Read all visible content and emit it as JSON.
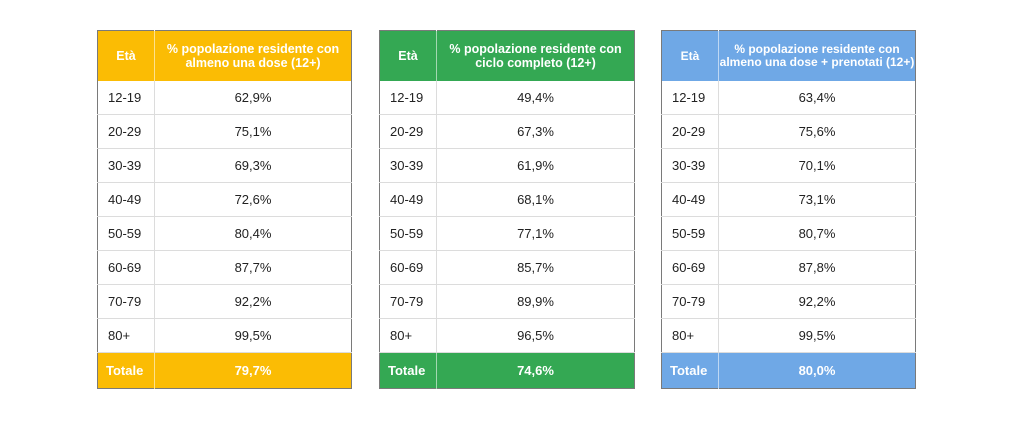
{
  "tables": [
    {
      "header_age": "Età",
      "header_value": "% popolazione residente con almeno una dose (12+)",
      "color": "#fbbc04",
      "rows": [
        {
          "age": "12-19",
          "value": "62,9%"
        },
        {
          "age": "20-29",
          "value": "75,1%"
        },
        {
          "age": "30-39",
          "value": "69,3%"
        },
        {
          "age": "40-49",
          "value": "72,6%"
        },
        {
          "age": "50-59",
          "value": "80,4%"
        },
        {
          "age": "60-69",
          "value": "87,7%"
        },
        {
          "age": "70-79",
          "value": "92,2%"
        },
        {
          "age": "80+",
          "value": "99,5%"
        }
      ],
      "total_label": "Totale",
      "total_value": "79,7%"
    },
    {
      "header_age": "Età",
      "header_value": "% popolazione residente con ciclo completo (12+)",
      "color": "#34a853",
      "rows": [
        {
          "age": "12-19",
          "value": "49,4%"
        },
        {
          "age": "20-29",
          "value": "67,3%"
        },
        {
          "age": "30-39",
          "value": "61,9%"
        },
        {
          "age": "40-49",
          "value": "68,1%"
        },
        {
          "age": "50-59",
          "value": "77,1%"
        },
        {
          "age": "60-69",
          "value": "85,7%"
        },
        {
          "age": "70-79",
          "value": "89,9%"
        },
        {
          "age": "80+",
          "value": "96,5%"
        }
      ],
      "total_label": "Totale",
      "total_value": "74,6%"
    },
    {
      "header_age": "Età",
      "header_value": "% popolazione residente con almeno una dose + prenotati (12+)",
      "color": "#6fa8e6",
      "rows": [
        {
          "age": "12-19",
          "value": "63,4%"
        },
        {
          "age": "20-29",
          "value": "75,6%"
        },
        {
          "age": "30-39",
          "value": "70,1%"
        },
        {
          "age": "40-49",
          "value": "73,1%"
        },
        {
          "age": "50-59",
          "value": "80,7%"
        },
        {
          "age": "60-69",
          "value": "87,8%"
        },
        {
          "age": "70-79",
          "value": "92,2%"
        },
        {
          "age": "80+",
          "value": "99,5%"
        }
      ],
      "total_label": "Totale",
      "total_value": "80,0%"
    }
  ]
}
